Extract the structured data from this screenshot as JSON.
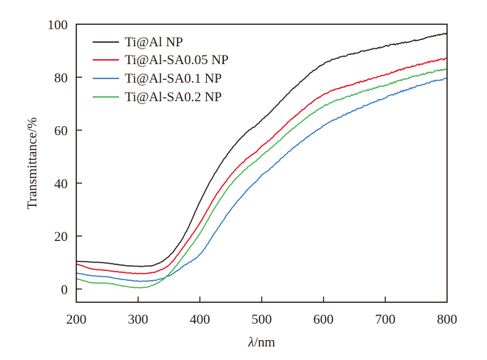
{
  "chart_data": {
    "type": "line",
    "title": "",
    "xlabel": "λ/nm",
    "xlabel_italic_part": "λ",
    "xlabel_rest": "/nm",
    "ylabel": "Transmittance/%",
    "xlim": [
      200,
      800
    ],
    "ylim": [
      -5,
      100
    ],
    "xticks": [
      200,
      300,
      400,
      500,
      600,
      700,
      800
    ],
    "yticks": [
      0,
      20,
      40,
      60,
      80,
      100
    ],
    "xtick_labels": [
      "200",
      "300",
      "400",
      "500",
      "600",
      "700",
      "800"
    ],
    "ytick_labels": [
      "0",
      "20",
      "40",
      "60",
      "80",
      "100"
    ],
    "grid": false,
    "legend_position": "top-left",
    "x": [
      200,
      225,
      250,
      275,
      300,
      325,
      350,
      375,
      400,
      425,
      450,
      475,
      500,
      550,
      600,
      650,
      700,
      750,
      800
    ],
    "series": [
      {
        "name": "Ti@Al NP",
        "color": "#231815",
        "values": [
          10.5,
          10.2,
          9.8,
          9.0,
          8.6,
          9.0,
          12.4,
          20.4,
          33.0,
          44.0,
          52.5,
          59.0,
          64.0,
          75.5,
          85.0,
          89.0,
          91.7,
          94.0,
          96.5
        ]
      },
      {
        "name": "Ti@Al-SA0.05 NP",
        "color": "#e60012",
        "values": [
          9.4,
          7.6,
          7.0,
          6.3,
          5.9,
          6.3,
          9.1,
          16.4,
          25.0,
          35.0,
          43.0,
          49.0,
          54.0,
          64.5,
          73.4,
          77.5,
          81.0,
          84.5,
          87.0
        ]
      },
      {
        "name": "Ti@Al-SA0.1 NP",
        "color": "#2e75c0",
        "values": [
          6.0,
          5.0,
          4.6,
          3.6,
          3.0,
          3.2,
          5.0,
          8.9,
          13.0,
          21.5,
          30.0,
          37.0,
          43.0,
          53.0,
          61.6,
          67.5,
          72.3,
          76.5,
          79.5
        ]
      },
      {
        "name": "Ti@Al-SA0.2 NP",
        "color": "#3cb04a",
        "values": [
          3.8,
          2.4,
          2.2,
          1.2,
          0.5,
          1.5,
          5.6,
          12.9,
          21.0,
          31.0,
          39.5,
          45.5,
          50.5,
          60.5,
          69.0,
          73.5,
          77.0,
          80.5,
          83.0
        ]
      }
    ]
  }
}
